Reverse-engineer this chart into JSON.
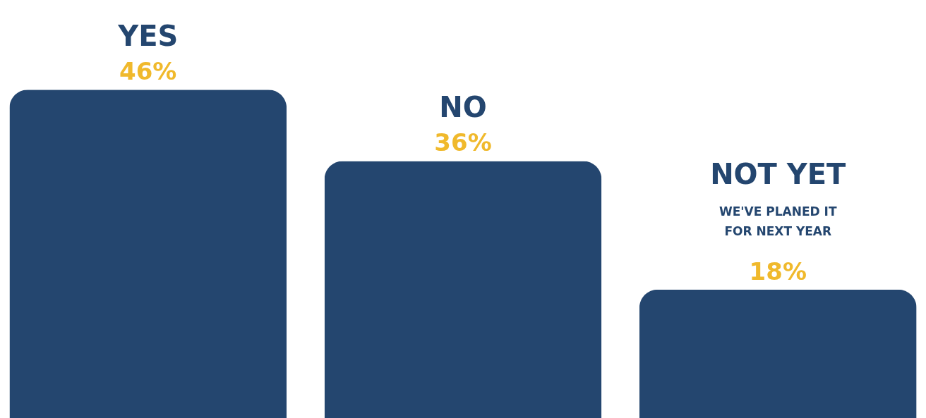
{
  "chart_data": {
    "type": "bar",
    "categories": [
      "YES",
      "NO",
      "NOT YET"
    ],
    "values": [
      46,
      36,
      18
    ],
    "color": "#24466f",
    "value_labels": [
      "46%",
      "36%",
      "18%"
    ],
    "annotations": [
      "WE'VE PLANED IT FOR NEXT YEAR"
    ]
  }
}
